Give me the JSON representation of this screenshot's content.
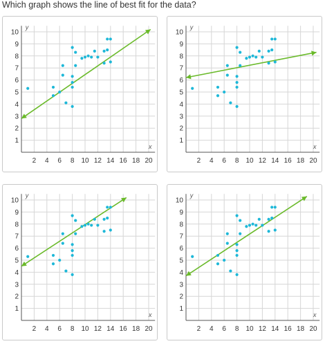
{
  "question": "Which graph shows the line of best fit for the data?",
  "colors": {
    "points": "#1eb8d8",
    "line": "#6aba2a",
    "grid": "#d6d6d6",
    "axis": "#555555"
  },
  "scatter_points": [
    [
      1,
      5.3
    ],
    [
      5,
      4.7
    ],
    [
      5,
      5.4
    ],
    [
      6,
      5.0
    ],
    [
      6.5,
      7.2
    ],
    [
      6.5,
      6.4
    ],
    [
      7,
      4.1
    ],
    [
      8,
      3.8
    ],
    [
      8,
      5.4
    ],
    [
      8,
      5.8
    ],
    [
      8,
      6.3
    ],
    [
      8,
      8.7
    ],
    [
      8.5,
      8.3
    ],
    [
      8.5,
      7.2
    ],
    [
      9.5,
      7.8
    ],
    [
      10,
      7.9
    ],
    [
      10.5,
      8.0
    ],
    [
      11,
      7.9
    ],
    [
      11.5,
      8.4
    ],
    [
      12,
      7.9
    ],
    [
      13,
      7.4
    ],
    [
      13,
      8.4
    ],
    [
      13.5,
      8.5
    ],
    [
      13.5,
      9.4
    ],
    [
      14,
      7.5
    ],
    [
      14,
      9.4
    ]
  ],
  "chart_data": [
    {
      "type": "scatter",
      "option": "top-left",
      "title": "",
      "xlabel": "x",
      "ylabel": "y",
      "xlim": [
        0,
        21
      ],
      "ylim": [
        0,
        10.5
      ],
      "xticks": [
        "2",
        "4",
        "6",
        "8",
        "10",
        "12",
        "14",
        "16",
        "18",
        "20"
      ],
      "yticks": [
        "1",
        "2",
        "3",
        "4",
        "5",
        "6",
        "7",
        "8",
        "9",
        "10"
      ],
      "grid": true,
      "line_points": [
        [
          0,
          2.8
        ],
        [
          20.3,
          10.2
        ]
      ]
    },
    {
      "type": "scatter",
      "option": "top-right",
      "title": "",
      "xlabel": "x",
      "ylabel": "y",
      "xlim": [
        0,
        21
      ],
      "ylim": [
        0,
        10.5
      ],
      "xticks": [
        "2",
        "4",
        "6",
        "8",
        "10",
        "12",
        "14",
        "16",
        "18",
        "20"
      ],
      "yticks": [
        "1",
        "2",
        "3",
        "4",
        "5",
        "6",
        "7",
        "8",
        "9",
        "10"
      ],
      "grid": true,
      "line_points": [
        [
          0,
          6.2
        ],
        [
          20.5,
          8.3
        ]
      ]
    },
    {
      "type": "scatter",
      "option": "bottom-left",
      "title": "",
      "xlabel": "x",
      "ylabel": "y",
      "xlim": [
        0,
        21
      ],
      "ylim": [
        0,
        10.5
      ],
      "xticks": [
        "2",
        "4",
        "6",
        "8",
        "10",
        "12",
        "14",
        "16",
        "18",
        "20"
      ],
      "yticks": [
        "1",
        "2",
        "3",
        "4",
        "5",
        "6",
        "7",
        "8",
        "9",
        "10"
      ],
      "grid": true,
      "line_points": [
        [
          0,
          4.5
        ],
        [
          16.5,
          10.2
        ]
      ]
    },
    {
      "type": "scatter",
      "option": "bottom-right",
      "title": "",
      "xlabel": "x",
      "ylabel": "y",
      "xlim": [
        0,
        21
      ],
      "ylim": [
        0,
        10.5
      ],
      "xticks": [
        "2",
        "4",
        "6",
        "8",
        "10",
        "12",
        "14",
        "16",
        "18",
        "20"
      ],
      "yticks": [
        "1",
        "2",
        "3",
        "4",
        "5",
        "6",
        "7",
        "8",
        "9",
        "10"
      ],
      "grid": true,
      "line_points": [
        [
          0,
          3.7
        ],
        [
          19,
          10.3
        ]
      ]
    }
  ]
}
